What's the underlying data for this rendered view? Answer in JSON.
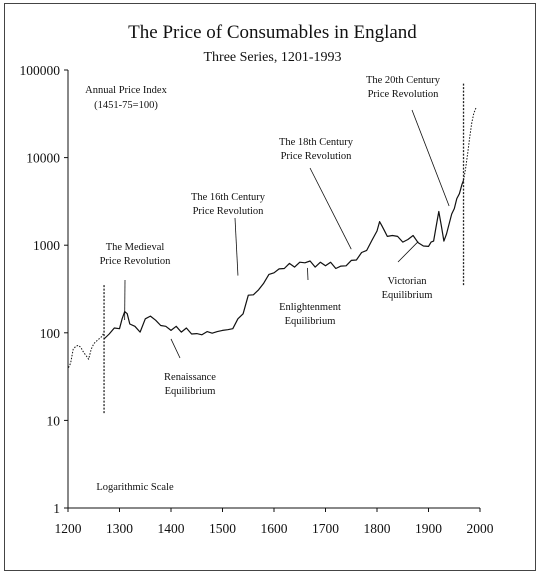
{
  "chart_data": {
    "type": "line",
    "title": "The Price of Consumables in England",
    "subtitle": "Three Series, 1201-1993",
    "y_axis_title": "Annual Price Index",
    "y_axis_note": "(1451-75=100)",
    "scale_note": "Logarithmic  Scale",
    "xlim": [
      1200,
      2000
    ],
    "ylim": [
      1,
      100000
    ],
    "y_scale": "log",
    "x_ticks": [
      "1200",
      "1300",
      "1400",
      "1500",
      "1600",
      "1700",
      "1800",
      "1900",
      "2000"
    ],
    "y_ticks": [
      "1",
      "10",
      "100",
      "1000",
      "10000",
      "100000"
    ],
    "grid": false,
    "series_boundaries_x": [
      1270,
      1968
    ],
    "series": [
      {
        "style": "dotted",
        "x": [
          1201,
          1205,
          1210,
          1215,
          1220,
          1225,
          1230,
          1235,
          1240,
          1245,
          1250,
          1255,
          1260,
          1265,
          1270
        ],
        "y": [
          40,
          45,
          65,
          70,
          72,
          68,
          60,
          55,
          50,
          65,
          75,
          80,
          85,
          90,
          100
        ]
      },
      {
        "style": "solid",
        "x": [
          1270,
          1280,
          1290,
          1300,
          1305,
          1310,
          1315,
          1320,
          1330,
          1340,
          1350,
          1360,
          1370,
          1380,
          1390,
          1400,
          1410,
          1420,
          1430,
          1440,
          1450,
          1460,
          1470,
          1480,
          1490,
          1500,
          1510,
          1520,
          1530,
          1540,
          1550,
          1560,
          1570,
          1580,
          1590,
          1600,
          1610,
          1620,
          1630,
          1640,
          1650,
          1660,
          1670,
          1680,
          1690,
          1700,
          1710,
          1720,
          1730,
          1740,
          1750,
          1760,
          1770,
          1780,
          1790,
          1800,
          1805,
          1810,
          1815,
          1820,
          1830,
          1840,
          1850,
          1860,
          1870,
          1880,
          1890,
          1900,
          1905,
          1910,
          1915,
          1920,
          1925,
          1930,
          1935,
          1940,
          1945,
          1950,
          1955,
          1960,
          1965,
          1968
        ],
        "y": [
          85,
          100,
          110,
          115,
          140,
          180,
          160,
          130,
          115,
          105,
          140,
          160,
          135,
          125,
          115,
          110,
          115,
          105,
          110,
          100,
          95,
          98,
          100,
          102,
          100,
          110,
          105,
          115,
          140,
          170,
          260,
          280,
          300,
          380,
          450,
          500,
          520,
          560,
          600,
          580,
          620,
          650,
          640,
          580,
          620,
          600,
          620,
          560,
          560,
          600,
          650,
          700,
          800,
          900,
          1100,
          1500,
          1800,
          1700,
          1400,
          1300,
          1250,
          1300,
          1050,
          1200,
          1250,
          1100,
          950,
          1000,
          1050,
          1150,
          1600,
          2500,
          1600,
          1150,
          1300,
          1800,
          2200,
          2700,
          3300,
          4000,
          4800,
          5500
        ]
      },
      {
        "style": "dotted",
        "x": [
          1968,
          1972,
          1976,
          1980,
          1984,
          1988,
          1993
        ],
        "y": [
          5500,
          7500,
          11000,
          17000,
          25000,
          32000,
          38000
        ]
      }
    ],
    "annotations": [
      {
        "text": [
          "The Medieval",
          "Price Revolution"
        ],
        "target": [
          1310,
          140
        ]
      },
      {
        "text": [
          "Renaissance",
          "Equilibrium"
        ],
        "target": [
          1400,
          85
        ]
      },
      {
        "text": [
          "The 16th Century",
          "Price Revolution"
        ],
        "target": [
          1530,
          450
        ]
      },
      {
        "text": [
          "Enlightenment",
          "Equilibrium"
        ],
        "target": [
          1665,
          550
        ]
      },
      {
        "text": [
          "The 18th Century",
          "Price Revolution"
        ],
        "target": [
          1750,
          900
        ]
      },
      {
        "text": [
          "Victorian",
          "Equilibrium"
        ],
        "target": [
          1880,
          1100
        ]
      },
      {
        "text": [
          "The 20th Century",
          "Price Revolution"
        ],
        "target": [
          1940,
          2800
        ]
      }
    ]
  }
}
